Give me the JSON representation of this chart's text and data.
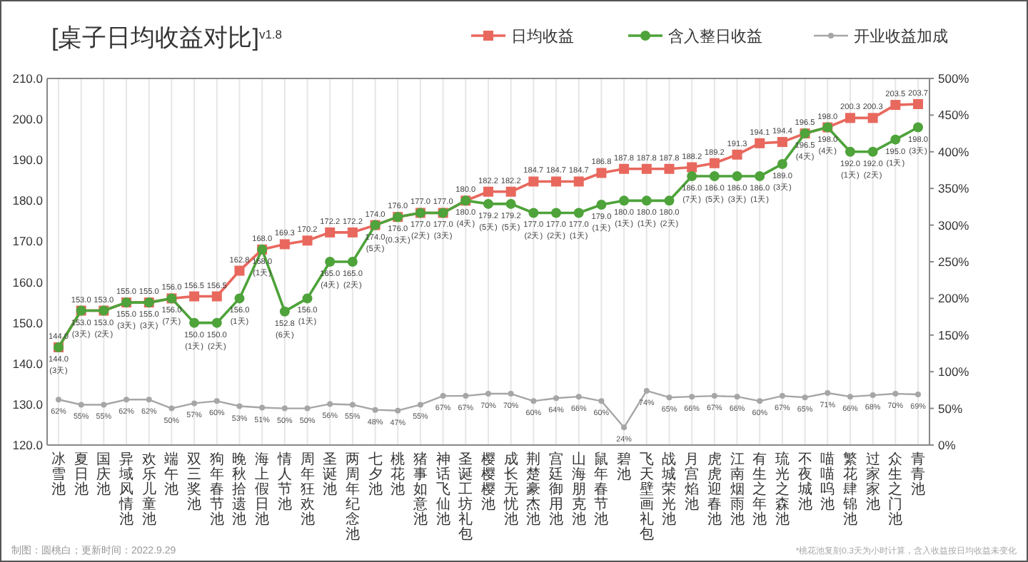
{
  "chart_data": {
    "type": "line",
    "title": "[桌子日均收益对比]$^{v1.8}$",
    "categories": [
      "冰雪池",
      "夏日池",
      "国庆池",
      "异域风情池",
      "欢乐儿童池",
      "端午池",
      "双三奖池",
      "狗年春节池",
      "晚秋拾遗池",
      "海上假日池",
      "情人节池",
      "周年狂欢池",
      "圣诞池",
      "两周年纪念池",
      "七夕池",
      "桃花池",
      "猪事如意池",
      "神话飞仙池",
      "圣诞工坊礼包",
      "樱樱樱池",
      "成长无忧池",
      "荆楚豪杰池",
      "宫廷御用池",
      "山海朋克池",
      "鼠年春节池",
      "碧池",
      "飞天壁画礼包",
      "战城荣光池",
      "月宫焰池",
      "虎虎迎春池",
      "江南烟雨池",
      "有生之年池",
      "琉光之森池",
      "不夜城池",
      "喵喵呜池",
      "繁花肆锦池",
      "过家家池",
      "众生之门池",
      "青青池"
    ],
    "series": [
      {
        "name": "日均收益",
        "color": "#e8685e",
        "marker": "square",
        "values": [
          144.0,
          153.0,
          153.0,
          155.0,
          155.0,
          156.0,
          156.5,
          156.5,
          162.8,
          168.0,
          169.3,
          170.2,
          172.2,
          172.2,
          174.0,
          176.0,
          177.0,
          177.0,
          180.0,
          182.2,
          182.2,
          184.7,
          184.7,
          184.7,
          186.8,
          187.8,
          187.8,
          187.8,
          188.2,
          189.2,
          191.3,
          194.1,
          194.4,
          196.5,
          198.0,
          200.3,
          200.3,
          203.5,
          203.7
        ],
        "value_labels": [
          "144.0",
          "153.0",
          "153.0",
          "155.0",
          "155.0",
          "156.0",
          "156.5",
          "156.5",
          "162.8",
          "168.0",
          "169.3",
          "170.2",
          "172.2",
          "172.2",
          "174.0",
          "176.0",
          "177.0",
          "177.0",
          "180.0",
          "182.2",
          "182.2",
          "184.7",
          "184.7",
          "184.7",
          "186.8",
          "187.8",
          "187.8",
          "187.8",
          "188.2",
          "189.2",
          "191.3",
          "194.1",
          "194.4",
          "196.5",
          "198.0",
          "200.3",
          "200.3",
          "203.5",
          "203.7"
        ]
      },
      {
        "name": "含入整日收益",
        "color": "#4ea33a",
        "marker": "circle",
        "values": [
          144.0,
          153.0,
          153.0,
          155.0,
          155.0,
          156.0,
          150.0,
          150.0,
          156.0,
          168.0,
          152.8,
          156.0,
          165.0,
          165.0,
          174.0,
          176.0,
          177.0,
          177.0,
          180.0,
          179.2,
          179.2,
          177.0,
          177.0,
          177.0,
          179.0,
          180.0,
          180.0,
          180.0,
          186.0,
          186.0,
          186.0,
          186.0,
          189.0,
          196.5,
          198.0,
          192.0,
          192.0,
          195.0,
          198.0
        ],
        "value_labels": [
          "144.0 (3天)",
          "153.0 (3天)",
          "153.0 (2天)",
          "155.0 (3天)",
          "155.0 (3天)",
          "156.0 (7天)",
          "150.0 (1天)",
          "150.0 (2天)",
          "156.0 (1天)",
          "168.0 (1天)",
          "152.8 (6天)",
          "156.0 (1天)",
          "165.0 (4天)",
          "165.0 (2天)",
          "174.0 (5天)",
          "176.0 (0.3天)",
          "177.0 (2天)",
          "177.0 (3天)",
          "180.0 (4天)",
          "179.2 (5天)",
          "179.2 (5天)",
          "177.0 (2天)",
          "177.0 (2天)",
          "177.0 (1天)",
          "179.0 (1天)",
          "180.0 (1天)",
          "180.0 (1天)",
          "180.0 (2天)",
          "186.0 (7天)",
          "186.0 (5天)",
          "186.0 (3天)",
          "186.0 (1天)",
          "189.0 (3天)",
          "196.5 (4天)",
          "198.0 (4天)",
          "192.0 (1天)",
          "192.0 (2天)",
          "195.0 (1天)",
          "198.0 (3天)"
        ]
      },
      {
        "name": "开业收益加成",
        "color": "#a6a6a6",
        "marker": "circle",
        "axis": "y2",
        "values": [
          62,
          55,
          55,
          62,
          62,
          50,
          57,
          60,
          53,
          51,
          50,
          50,
          56,
          55,
          48,
          47,
          55,
          67,
          67,
          70,
          70,
          60,
          64,
          66,
          60,
          24,
          74,
          65,
          66,
          67,
          66,
          60,
          67,
          65,
          71,
          66,
          68,
          70,
          69
        ],
        "value_labels": [
          "62%",
          "55%",
          "55%",
          "62%",
          "62%",
          "50%",
          "57%",
          "60%",
          "53%",
          "51%",
          "50%",
          "50%",
          "56%",
          "55%",
          "48%",
          "47%",
          "55%",
          "67%",
          "67%",
          "70%",
          "70%",
          "60%",
          "64%",
          "66%",
          "60%",
          "24%",
          "74%",
          "65%",
          "66%",
          "67%",
          "66%",
          "60%",
          "67%",
          "65%",
          "71%",
          "66%",
          "68%",
          "70%",
          "69%"
        ]
      }
    ],
    "ylim": [
      120,
      210
    ],
    "yticks": [
      {
        "value": 120,
        "label": "120.0"
      },
      {
        "value": 130,
        "label": "130.0"
      },
      {
        "value": 140,
        "label": "140.0"
      },
      {
        "value": 150,
        "label": "150.0"
      },
      {
        "value": 160,
        "label": "160.0"
      },
      {
        "value": 170,
        "label": "170.0"
      },
      {
        "value": 180,
        "label": "180.0"
      },
      {
        "value": 190,
        "label": "190.0"
      },
      {
        "value": 200,
        "label": "200.0"
      },
      {
        "value": 210,
        "label": "210.0"
      }
    ],
    "y2lim": [
      0,
      500
    ],
    "y2ticks": [
      {
        "value": 0,
        "label": "0%"
      },
      {
        "value": 50,
        "label": "50%"
      },
      {
        "value": 100,
        "label": "100%"
      },
      {
        "value": 150,
        "label": "150%"
      },
      {
        "value": 200,
        "label": "200%"
      },
      {
        "value": 250,
        "label": "250%"
      },
      {
        "value": 300,
        "label": "300%"
      },
      {
        "value": 350,
        "label": "350%"
      },
      {
        "value": 400,
        "label": "400%"
      },
      {
        "value": 450,
        "label": "450%"
      },
      {
        "value": 500,
        "label": "500%"
      }
    ],
    "grid": "x",
    "legend": "top right",
    "annotations": [
      "制图：圆桃白；更新时间：2022.9.29",
      "*桃花池复刻0.3天为小时计算，含入收益按日均收益未变化"
    ]
  }
}
